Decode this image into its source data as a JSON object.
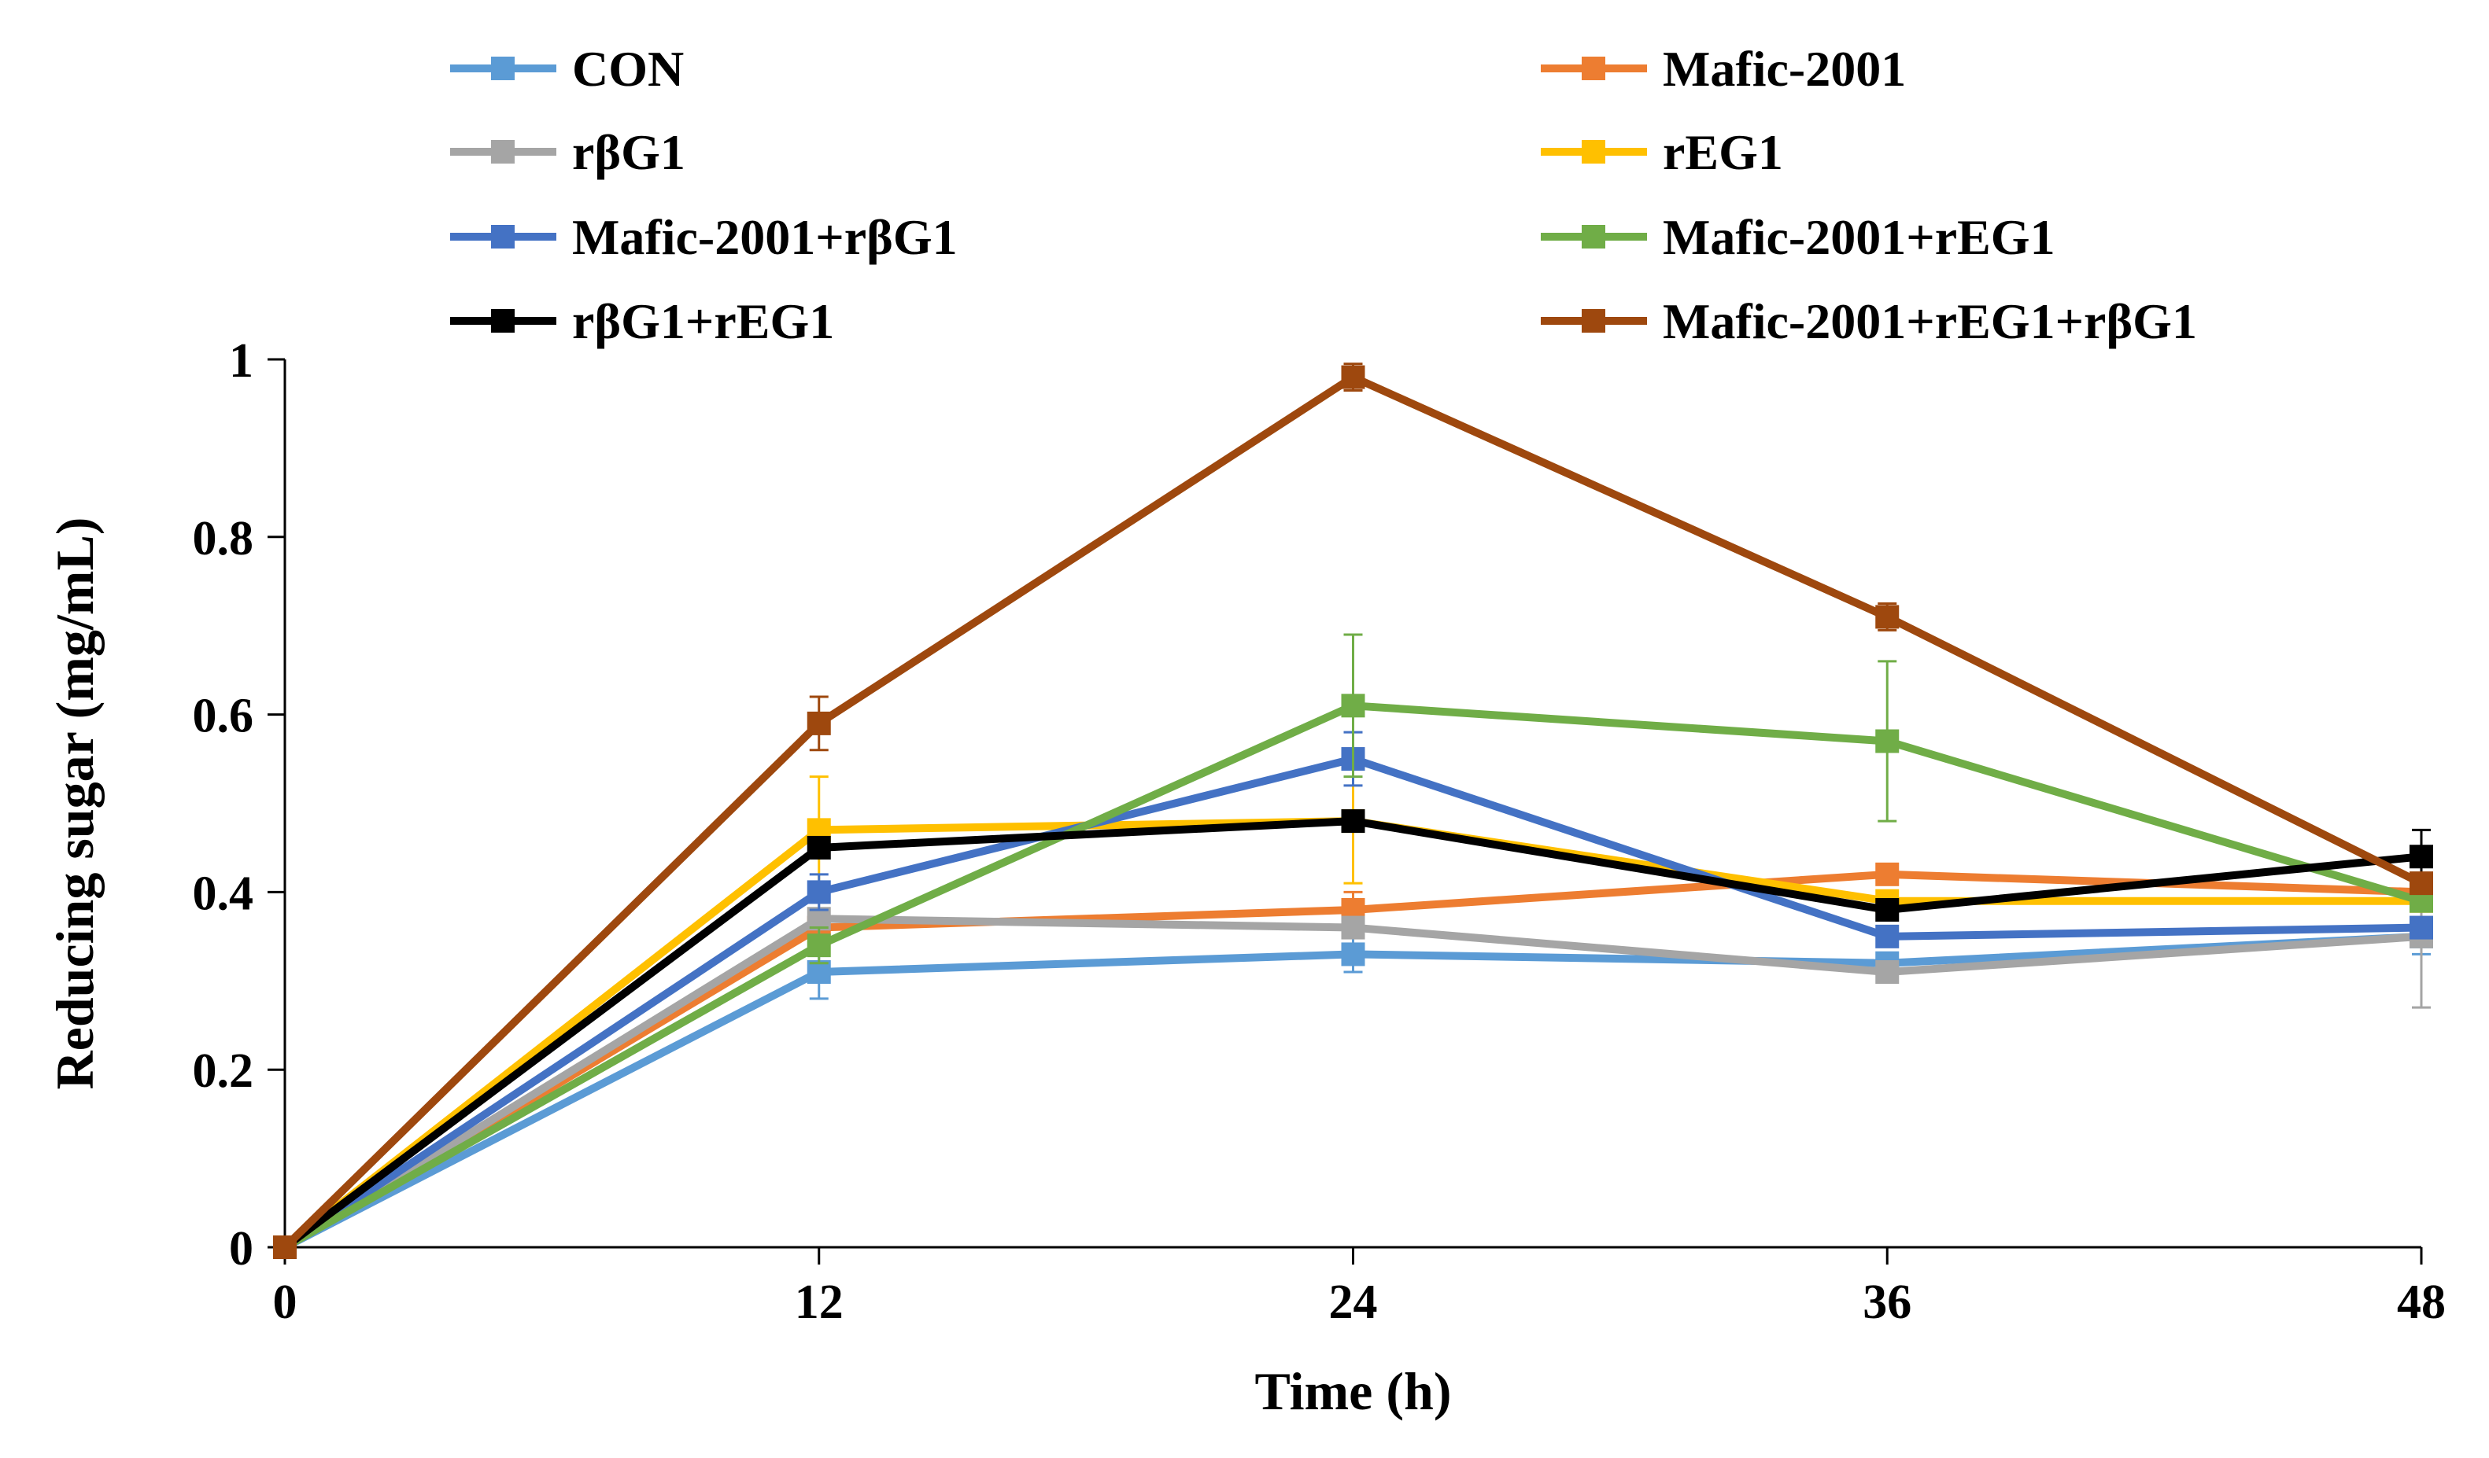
{
  "chart_data": {
    "type": "line",
    "title": "",
    "xlabel": "Time (h)",
    "ylabel": "Reducing sugar (mg/mL)",
    "x": [
      0,
      12,
      24,
      36,
      48
    ],
    "x_tick_labels": [
      "0",
      "12",
      "24",
      "36",
      "48"
    ],
    "xlim": [
      0,
      48
    ],
    "ylim": [
      0,
      1
    ],
    "y_ticks": [
      0,
      0.2,
      0.4,
      0.6,
      0.8,
      1
    ],
    "y_tick_labels": [
      "0",
      "0.2",
      "0.4",
      "0.6",
      "0.8",
      "1"
    ],
    "grid": false,
    "legend_position": "top",
    "series": [
      {
        "name": "CON",
        "color": "#5B9BD5",
        "values": [
          0,
          0.31,
          0.33,
          0.32,
          0.35
        ],
        "errors": [
          0,
          0.03,
          0.02,
          0.01,
          0.02
        ]
      },
      {
        "name": "Mafic-2001",
        "color": "#ED7D31",
        "values": [
          0,
          0.36,
          0.38,
          0.42,
          0.4
        ],
        "errors": [
          0,
          0.02,
          0.02,
          0.01,
          0.01
        ]
      },
      {
        "name": "rβG1",
        "color": "#A5A5A5",
        "values": [
          0,
          0.37,
          0.36,
          0.31,
          0.35
        ],
        "errors": [
          0,
          0.02,
          0.01,
          0.01,
          0.08
        ]
      },
      {
        "name": "rEG1",
        "color": "#FFC000",
        "values": [
          0,
          0.47,
          0.48,
          0.39,
          0.39
        ],
        "errors": [
          0,
          0.06,
          0.07,
          0.01,
          0.01
        ]
      },
      {
        "name": "Mafic-2001+rβG1",
        "color": "#4472C4",
        "values": [
          0,
          0.4,
          0.55,
          0.35,
          0.36
        ],
        "errors": [
          0,
          0.02,
          0.03,
          0.01,
          0.01
        ]
      },
      {
        "name": "Mafic-2001+rEG1",
        "color": "#70AD47",
        "values": [
          0,
          0.34,
          0.61,
          0.57,
          0.39
        ],
        "errors": [
          0,
          0.02,
          0.08,
          0.09,
          0.01
        ]
      },
      {
        "name": "rβG1+rEG1",
        "color": "#000000",
        "values": [
          0,
          0.45,
          0.48,
          0.38,
          0.44
        ],
        "errors": [
          0,
          0.01,
          0.01,
          0.01,
          0.03
        ]
      },
      {
        "name": "Mafic-2001+rEG1+rβG1",
        "color": "#9E480E",
        "values": [
          0,
          0.59,
          0.98,
          0.71,
          0.41
        ],
        "errors": [
          0,
          0.03,
          0.015,
          0.015,
          0.01
        ]
      }
    ]
  }
}
